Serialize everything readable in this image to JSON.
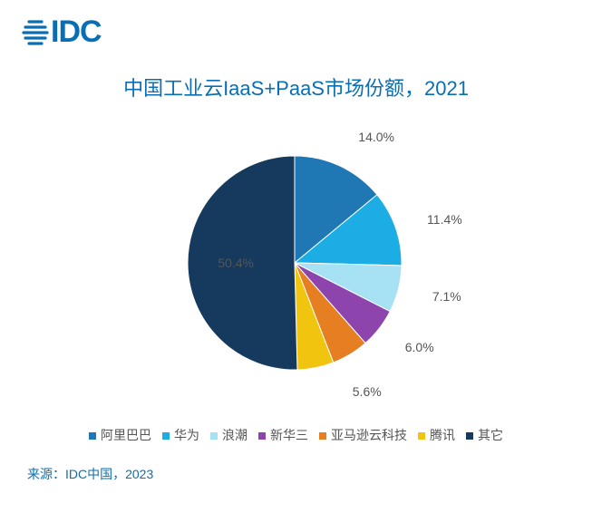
{
  "logo": {
    "text": "IDC",
    "color": "#0a6eb4"
  },
  "title": {
    "text": "中国工业云IaaS+PaaS市场份额，2021",
    "color": "#0a6eb4",
    "fontsize": 22
  },
  "source": {
    "text": "来源：IDC中国，2023",
    "color": "#0a6eb4",
    "fontsize": 14
  },
  "chart": {
    "type": "pie",
    "background_color": "#ffffff",
    "label_fontsize": 14,
    "label_color": "#555555",
    "slices": [
      {
        "label": "阿里巴巴",
        "value": 14.0,
        "pct": "14.0%",
        "color": "#1f77b4"
      },
      {
        "label": "华为",
        "value": 11.4,
        "pct": "11.4%",
        "color": "#1cade4"
      },
      {
        "label": "浪潮",
        "value": 7.1,
        "pct": "7.1%",
        "color": "#a6e1f4"
      },
      {
        "label": "新华三",
        "value": 6.0,
        "pct": "6.0%",
        "color": "#8e44ad"
      },
      {
        "label": "亚马逊云科技",
        "value": 5.6,
        "pct": "5.6%",
        "color": "#e67e22"
      },
      {
        "label": "腾讯",
        "value": 5.5,
        "pct": "5.5%",
        "color": "#f1c40f"
      },
      {
        "label": "其它",
        "value": 50.4,
        "pct": "50.4%",
        "color": "#163a5e"
      }
    ],
    "legend_fontsize": 14,
    "legend_swatch_size": 8
  }
}
